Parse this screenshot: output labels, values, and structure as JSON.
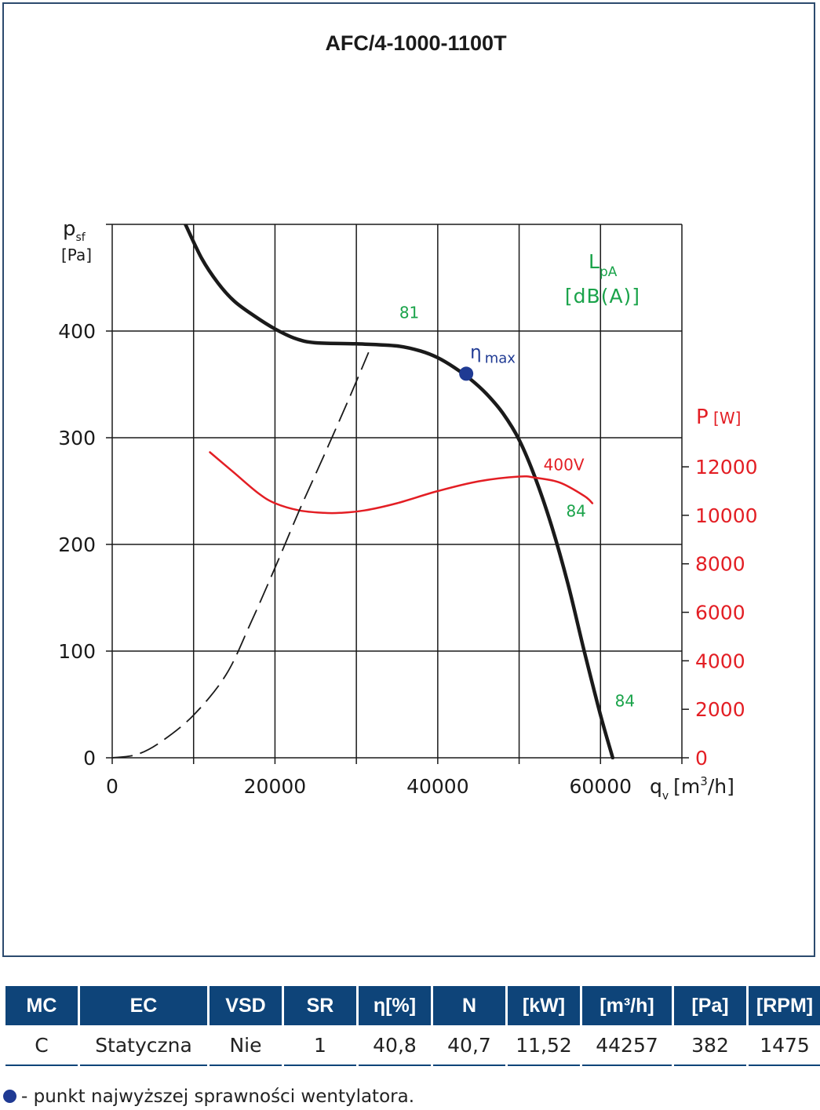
{
  "chart_data": {
    "type": "line",
    "title": "AFC/4-1000-1100T",
    "x_axis": {
      "label_main": "q",
      "label_sub": "v",
      "label_unit_prefix": "[m",
      "label_unit_sup": "3",
      "label_unit_suffix": "/h]",
      "range": [
        0,
        70000
      ],
      "ticks": [
        0,
        20000,
        40000,
        60000
      ],
      "gridlines": [
        0,
        10000,
        20000,
        30000,
        40000,
        50000,
        60000,
        70000
      ]
    },
    "y_axis_left": {
      "label_main": "p",
      "label_sub": "sf",
      "label_unit": "[Pa]",
      "range": [
        0,
        500
      ],
      "ticks": [
        0,
        100,
        200,
        300,
        400
      ],
      "gridlines": [
        0,
        100,
        200,
        300,
        400,
        500
      ]
    },
    "y_axis_right": {
      "label_main": "P",
      "label_unit": "[W]",
      "range": [
        0,
        22000
      ],
      "ticks": [
        0,
        2000,
        4000,
        6000,
        8000,
        10000,
        12000
      ],
      "color": "#e31e24"
    },
    "grid": true,
    "series": [
      {
        "role": "pressure_curve",
        "axis": "left",
        "color": "#1a1a1a",
        "style": "solid",
        "x": [
          9000,
          11000,
          13000,
          15000,
          17500,
          20000,
          22500,
          25000,
          30000,
          35000,
          38000,
          40000,
          42000,
          44000,
          46000,
          48000,
          50000,
          52000,
          54000,
          56000,
          58000,
          60000,
          61500
        ],
        "y": [
          500,
          468,
          445,
          428,
          414,
          402,
          393,
          389,
          388,
          386,
          381,
          375,
          366,
          355,
          341,
          323,
          298,
          262,
          217,
          163,
          100,
          40,
          0
        ]
      },
      {
        "role": "power_curve",
        "name": "400V",
        "axis": "right",
        "color": "#e31e24",
        "style": "solid",
        "x": [
          12000,
          15000,
          18000,
          20000,
          23000,
          26000,
          28000,
          31000,
          35000,
          40000,
          45000,
          50000,
          52000,
          55000,
          58000,
          59000
        ],
        "y": [
          12600,
          11750,
          10900,
          10500,
          10200,
          10100,
          10100,
          10200,
          10500,
          11000,
          11400,
          11600,
          11550,
          11350,
          10800,
          10500
        ]
      },
      {
        "role": "system_curve",
        "axis": "left",
        "color": "#1a1a1a",
        "style": "dashed",
        "x": [
          0,
          3000,
          6000,
          10000,
          14000,
          17000,
          20000,
          23000,
          26000,
          29000,
          31500
        ],
        "y": [
          0,
          3,
          15,
          40,
          78,
          126,
          178,
          232,
          283,
          335,
          380
        ]
      }
    ],
    "points": [
      {
        "name": "η",
        "sub": "max",
        "x": 43500,
        "y": 360,
        "color": "#1f3a93"
      }
    ],
    "annotations": [
      {
        "text": "81",
        "x": 36500,
        "y": 412,
        "color": "#1aa34a"
      },
      {
        "text": "400V",
        "x": 55500,
        "y_right": 11850,
        "color": "#e31e24"
      },
      {
        "text": "84",
        "x": 57000,
        "y_right": 9950,
        "color": "#1aa34a"
      },
      {
        "text": "84",
        "x": 63000,
        "y": 48,
        "color": "#1aa34a"
      }
    ],
    "lpa_label": {
      "main": "L",
      "sub": "pA",
      "unit": "[dB(A)]",
      "color": "#1aa34a"
    }
  },
  "table": {
    "headers": [
      "MC",
      "EC",
      "VSD",
      "SR",
      "η[%]",
      "N",
      "[kW]",
      "[m³/h]",
      "[Pa]",
      "[RPM]"
    ],
    "row": [
      "C",
      "Statyczna",
      "Nie",
      "1",
      "40,8",
      "40,7",
      "11,52",
      "44257",
      "382",
      "1475"
    ]
  },
  "footnote": "- punkt najwyższej sprawności wentylatora.",
  "colors": {
    "header_bg": "#0e4479",
    "frame": "#2c4a6e",
    "eta_point": "#1f3a93",
    "power": "#e31e24",
    "noise": "#1aa34a"
  }
}
